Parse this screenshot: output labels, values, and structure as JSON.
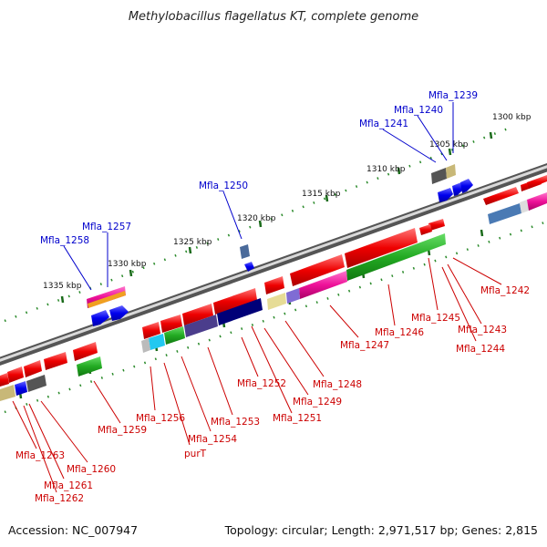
{
  "title": "Methylobacillus flagellatus KT, complete genome",
  "footer": {
    "accession": "Accession: NC_007947",
    "stats": "Topology: circular; Length: 2,971,517 bp; Genes: 2,815"
  },
  "ticks": [
    "1300 kbp",
    "1305 kbp",
    "1310 kbp",
    "1315 kbp",
    "1320 kbp",
    "1325 kbp",
    "1330 kbp",
    "1335 kbp"
  ],
  "gene_labels_top": [
    "Mfla_1239",
    "Mfla_1240",
    "Mfla_1241",
    "Mfla_1250",
    "Mfla_1257",
    "Mfla_1258"
  ],
  "gene_labels_bottom": [
    "Mfla_1242",
    "Mfla_1243",
    "Mfla_1244",
    "Mfla_1245",
    "Mfla_1246",
    "Mfla_1247",
    "Mfla_1248",
    "Mfla_1249",
    "Mfla_1251",
    "Mfla_1252",
    "Mfla_1253",
    "Mfla_1254",
    "purT",
    "Mfla_1256",
    "Mfla_1259",
    "Mfla_1260",
    "Mfla_1261",
    "Mfla_1262",
    "Mfla_1263"
  ],
  "colors": {
    "forward": "#e41a1c",
    "reverse": "#0000ee",
    "blue_label": "#0000cc",
    "red_label": "#cc0000",
    "dots": "#2a8a2a"
  }
}
